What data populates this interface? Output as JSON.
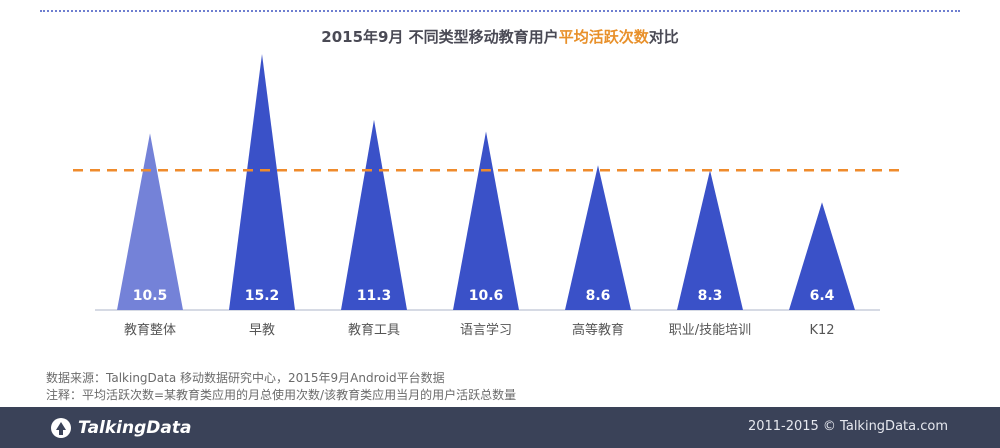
{
  "header": {
    "title_part1": "2015年9月  不同类型移动教育用户",
    "title_highlight": "平均活跃次数",
    "title_part2": "对比"
  },
  "chart_data": {
    "type": "bar",
    "shape": "triangle",
    "title": "2015年9月  不同类型移动教育用户平均活跃次数对比",
    "categories": [
      "教育整体",
      "早教",
      "教育工具",
      "语言学习",
      "高等教育",
      "职业/技能培训",
      "K12"
    ],
    "values": [
      10.5,
      15.2,
      11.3,
      10.6,
      8.6,
      8.3,
      6.4
    ],
    "value_labels": [
      "10.5",
      "15.2",
      "11.3",
      "10.6",
      "8.6",
      "8.3",
      "6.4"
    ],
    "reference_line": 8.3,
    "ylim": [
      0,
      15.8
    ],
    "grid": false,
    "colors": {
      "highlight": "#7482d8",
      "bar": "#3a51c8",
      "reference": "#ef8b2c",
      "axis": "#aeb4c8"
    }
  },
  "notes": {
    "source": "数据来源：TalkingData 移动数据研究中心，2015年9月Android平台数据",
    "remark": "注释：平均活跃次数=某教育类应用的月总使用次数/该教育类应用当月的用户活跃总数量"
  },
  "footer": {
    "logo_text": "TalkingData",
    "logo_icon": "talkingdata-logo-icon",
    "copyright": "2011-2015 © TalkingData.com"
  }
}
